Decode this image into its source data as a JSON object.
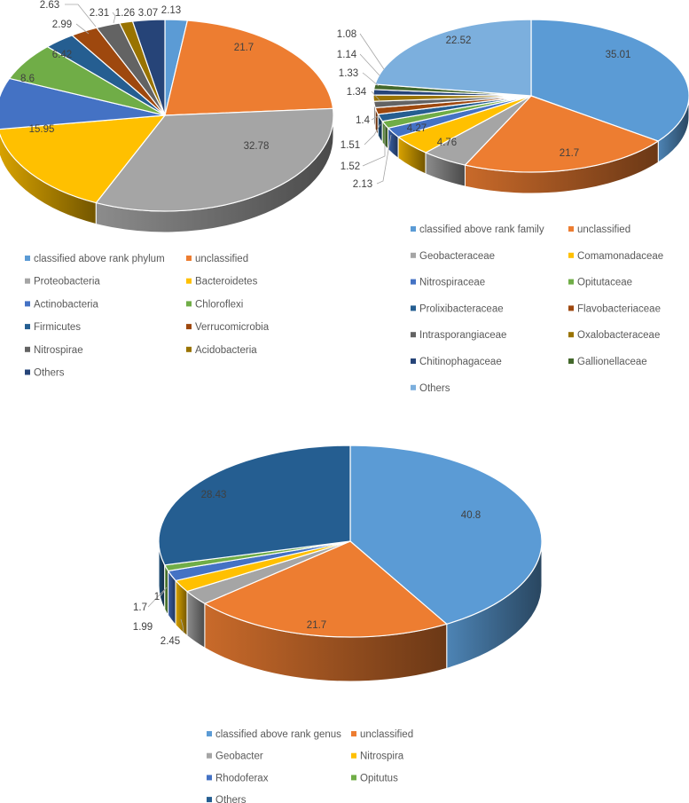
{
  "chart_data": [
    {
      "type": "pie",
      "title": "",
      "categories": [
        "classified above rank phylum",
        "unclassified",
        "Proteobacteria",
        "Bacteroidetes",
        "Actinobacteria",
        "Chloroflexi",
        "Firmicutes",
        "Verrucomicrobia",
        "Nitrospirae",
        "Acidobacteria",
        "Others"
      ],
      "values": [
        2.13,
        21.7,
        32.78,
        15.95,
        8.6,
        6.42,
        2.99,
        2.63,
        2.31,
        1.26,
        3.07
      ],
      "labels": [
        "2.13",
        "21.7",
        "32.78",
        "15.95",
        "8.6",
        "6.42",
        "2.99",
        "2.63",
        "2.31",
        "1.26",
        "3.07"
      ],
      "colors": [
        "#5B9BD5",
        "#ED7D31",
        "#A5A5A5",
        "#FFC000",
        "#4472C4",
        "#70AD47",
        "#255E91",
        "#9E480E",
        "#636363",
        "#997300",
        "#264478"
      ],
      "legend_position": "bottom"
    },
    {
      "type": "pie",
      "title": "",
      "categories": [
        "classified above rank family",
        "unclassified",
        "Geobacteraceae",
        "Comamonadaceae",
        "Nitrospiraceae",
        "Opitutaceae",
        "Prolixibacteraceae",
        "Flavobacteriaceae",
        "Intrasporangiaceae",
        "Oxalobacteraceae",
        "Chitinophagaceae",
        "Gallionellaceae",
        "Others"
      ],
      "values": [
        35.01,
        21.7,
        4.76,
        4.27,
        2.13,
        1.52,
        1.51,
        1.4,
        1.34,
        1.33,
        1.14,
        1.08,
        22.52
      ],
      "labels": [
        "35.01",
        "21.7",
        "4.76",
        "4.27",
        "2.13",
        "1.52",
        "1.51",
        "1.4",
        "1.34",
        "1.33",
        "1.14",
        "1.08",
        "22.52"
      ],
      "colors": [
        "#5B9BD5",
        "#ED7D31",
        "#A5A5A5",
        "#FFC000",
        "#4472C4",
        "#70AD47",
        "#255E91",
        "#9E480E",
        "#636363",
        "#997300",
        "#264478",
        "#43682B",
        "#7CAFDD"
      ],
      "legend_position": "bottom"
    },
    {
      "type": "pie",
      "title": "",
      "categories": [
        "classified above rank genus",
        "unclassified",
        "Geobacter",
        "Nitrospira",
        "Rhodoferax",
        "Opitutus",
        "Others"
      ],
      "values": [
        40.8,
        21.7,
        2.45,
        1.99,
        1.7,
        1,
        28.43
      ],
      "labels": [
        "40.8",
        "21.7",
        "2.45",
        "1.99",
        "1.7",
        "1",
        "28.43"
      ],
      "colors": [
        "#5B9BD5",
        "#ED7D31",
        "#A5A5A5",
        "#FFC000",
        "#4472C4",
        "#70AD47",
        "#255E91"
      ],
      "legend_position": "bottom"
    }
  ]
}
